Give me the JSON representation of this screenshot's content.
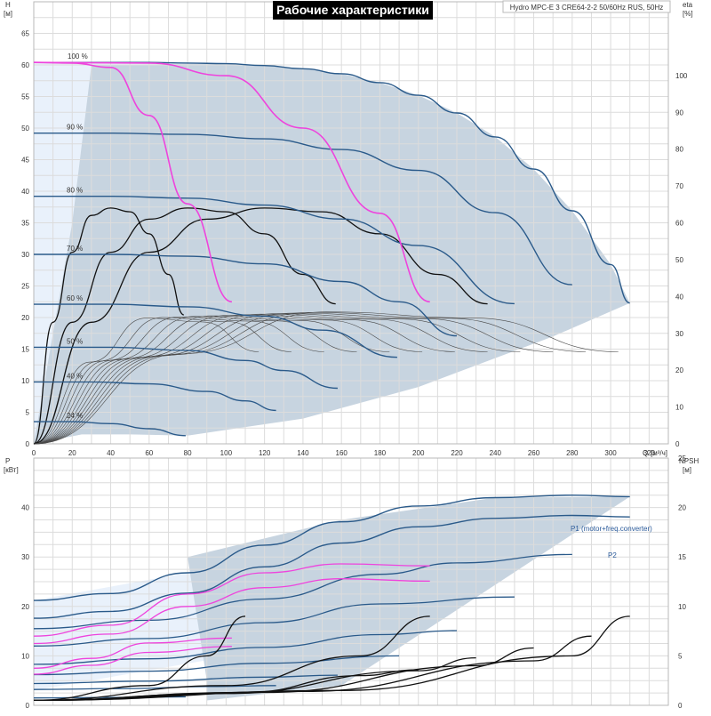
{
  "colors": {
    "curve": "#2a5a8a",
    "thin": "#4a4a4a",
    "black": "#111111",
    "magenta": "#ee44dd",
    "region": "#c7d4e0",
    "light_region": "#e9f1fb",
    "grid": "#dcdcdc"
  },
  "chart_data": [
    {
      "type": "line",
      "title": "Рабочие характеристики",
      "subtitle": "Hydro MPC-E 3 CRE64-2-2 50/60Hz RUS, 50Hz",
      "ylabel": "H",
      "ylabel_unit": "[м]",
      "ylabel_right": "eta",
      "ylabel_right_unit": "[%]",
      "xlabel": "Q",
      "xlabel_unit": "[м³/ч]",
      "xlim": [
        0,
        330
      ],
      "ylim": [
        0,
        70
      ],
      "y2lim": [
        0,
        120
      ],
      "grid": true,
      "xticks": [
        0,
        20,
        40,
        60,
        80,
        100,
        120,
        140,
        160,
        180,
        200,
        220,
        240,
        260,
        280,
        300,
        320
      ],
      "yticks": [
        0,
        5,
        10,
        15,
        20,
        25,
        30,
        35,
        40,
        45,
        50,
        55,
        60,
        65
      ],
      "y2ticks": [
        0,
        10,
        20,
        30,
        40,
        50,
        60,
        70,
        80,
        90,
        100
      ],
      "speed_labels": [
        "100 %",
        "90 %",
        "80 %",
        "70 %",
        "60 %",
        "50 %",
        "40 %",
        "24 %"
      ],
      "head_curves": [
        {
          "speed": 100,
          "x": [
            0,
            20,
            40,
            60,
            80,
            100,
            120,
            140,
            160,
            180,
            200,
            220,
            240,
            260,
            280,
            300,
            310
          ],
          "y": [
            60.4,
            60.4,
            60.4,
            60.4,
            60.3,
            60.2,
            59.9,
            59.4,
            58.6,
            57.2,
            55.2,
            52.4,
            48.6,
            43.5,
            36.9,
            28.4,
            22.3
          ]
        },
        {
          "speed": 90,
          "x": [
            0,
            40,
            80,
            120,
            160,
            200,
            240,
            280
          ],
          "y": [
            49.2,
            49.2,
            49.0,
            48.3,
            46.6,
            43.3,
            36.6,
            25.2
          ]
        },
        {
          "speed": 80,
          "x": [
            0,
            40,
            80,
            120,
            160,
            200,
            250
          ],
          "y": [
            39.2,
            39.2,
            38.9,
            37.8,
            35.6,
            31.4,
            22.2
          ]
        },
        {
          "speed": 70,
          "x": [
            0,
            40,
            80,
            120,
            160,
            190,
            220
          ],
          "y": [
            30.0,
            30.0,
            29.7,
            28.5,
            25.7,
            22.5,
            17.1
          ]
        },
        {
          "speed": 60,
          "x": [
            0,
            40,
            80,
            120,
            150,
            189
          ],
          "y": [
            22.1,
            22.1,
            21.7,
            20.2,
            18.0,
            13.7
          ]
        },
        {
          "speed": 50,
          "x": [
            0,
            40,
            80,
            110,
            130,
            158
          ],
          "y": [
            15.3,
            15.3,
            14.8,
            13.2,
            11.6,
            8.8
          ]
        },
        {
          "speed": 40,
          "x": [
            0,
            30,
            60,
            90,
            110,
            126
          ],
          "y": [
            9.8,
            9.8,
            9.5,
            8.3,
            6.8,
            5.3
          ]
        },
        {
          "speed": 24,
          "x": [
            0,
            20,
            40,
            60,
            79
          ],
          "y": [
            3.5,
            3.5,
            3.2,
            2.4,
            1.3
          ]
        }
      ],
      "efficiency_curves": [
        {
          "pumps": 1,
          "x": [
            0,
            10,
            20,
            30,
            40,
            50,
            60,
            70,
            78
          ],
          "y": [
            0,
            33,
            52,
            62,
            64,
            63,
            57,
            46,
            35
          ]
        },
        {
          "pumps": 2,
          "x": [
            0,
            20,
            40,
            60,
            80,
            100,
            120,
            140,
            157
          ],
          "y": [
            0,
            33,
            52,
            61,
            64,
            63,
            57,
            46,
            38
          ]
        },
        {
          "pumps": 3,
          "x": [
            0,
            30,
            60,
            90,
            120,
            150,
            180,
            210,
            236
          ],
          "y": [
            0,
            33,
            52,
            61,
            64,
            63,
            57,
            46,
            38
          ]
        }
      ],
      "pump_combo_curves": [
        {
          "name": "1",
          "x": [
            0,
            20,
            40,
            60,
            80,
            103
          ],
          "y": [
            60.4,
            60.3,
            59.6,
            52.0,
            38.0,
            22.5
          ]
        },
        {
          "name": "2",
          "x": [
            0,
            60,
            100,
            140,
            180,
            206
          ],
          "y": [
            60.4,
            60.3,
            58.3,
            50.0,
            36.5,
            22.5
          ]
        }
      ]
    },
    {
      "type": "line",
      "ylabel": "P",
      "ylabel_unit": "[кВт]",
      "ylabel_right": "NPSH",
      "ylabel_right_unit": "[м]",
      "xlim": [
        0,
        330
      ],
      "ylim": [
        0,
        50
      ],
      "y2lim": [
        0,
        25
      ],
      "grid": true,
      "yticks": [
        0,
        10,
        20,
        30,
        40
      ],
      "y2ticks": [
        0,
        5,
        10,
        15,
        20,
        25
      ],
      "series": [
        {
          "name": "P1 (motor+freq.converter)",
          "x": [
            0,
            40,
            80,
            120,
            160,
            200,
            240,
            280,
            310
          ],
          "y": [
            21.2,
            22.6,
            26.8,
            32.4,
            37.1,
            40.3,
            42.0,
            42.5,
            42.2
          ]
        },
        {
          "name": "P2",
          "x": [
            0,
            40,
            80,
            120,
            160,
            200,
            240,
            280,
            310
          ],
          "y": [
            17.6,
            19.0,
            22.7,
            28.0,
            32.8,
            36.1,
            37.8,
            38.4,
            38.1
          ]
        }
      ],
      "power_curves": [
        {
          "x": [
            0,
            60,
            120,
            180,
            220,
            280
          ],
          "y": [
            15.5,
            17.2,
            21.5,
            26.5,
            28.8,
            30.5
          ]
        },
        {
          "x": [
            0,
            60,
            120,
            180,
            250
          ],
          "y": [
            12.0,
            13.5,
            16.7,
            20.5,
            21.9
          ]
        },
        {
          "x": [
            0,
            60,
            120,
            180,
            220
          ],
          "y": [
            8.3,
            9.4,
            11.7,
            14.3,
            15.1
          ]
        },
        {
          "x": [
            0,
            60,
            120,
            190
          ],
          "y": [
            6.2,
            6.9,
            8.5,
            10.0
          ]
        },
        {
          "x": [
            0,
            60,
            120,
            158
          ],
          "y": [
            4.4,
            4.9,
            5.7,
            6.1
          ]
        },
        {
          "x": [
            0,
            50,
            90,
            126
          ],
          "y": [
            3.2,
            3.4,
            3.8,
            4.0
          ]
        },
        {
          "x": [
            0,
            40,
            79
          ],
          "y": [
            1.5,
            1.6,
            1.7
          ]
        }
      ],
      "magenta_curves": [
        {
          "x": [
            0,
            40,
            80,
            120,
            160,
            206
          ],
          "y": [
            14.0,
            16.2,
            22.5,
            26.8,
            28.6,
            28.2
          ]
        },
        {
          "x": [
            0,
            40,
            80,
            120,
            160,
            206
          ],
          "y": [
            12.5,
            14.4,
            20.0,
            23.8,
            25.6,
            25.1
          ]
        },
        {
          "x": [
            0,
            30,
            60,
            103
          ],
          "y": [
            7.5,
            9.5,
            12.6,
            13.6
          ]
        },
        {
          "x": [
            0,
            30,
            60,
            103
          ],
          "y": [
            6.3,
            8.1,
            10.7,
            11.9
          ]
        }
      ],
      "npsh_curves": [
        {
          "x": [
            0,
            60,
            90,
            110
          ],
          "y": [
            0.5,
            2.0,
            5.0,
            9.0
          ]
        },
        {
          "x": [
            0,
            100,
            170,
            206
          ],
          "y": [
            0.5,
            2.0,
            5.0,
            9.0
          ]
        },
        {
          "x": [
            0,
            100,
            200,
            230
          ],
          "y": [
            0.5,
            1.2,
            3.5,
            4.8
          ]
        },
        {
          "x": [
            0,
            120,
            230,
            260
          ],
          "y": [
            0.5,
            1.3,
            4.0,
            5.8
          ]
        },
        {
          "x": [
            0,
            140,
            260,
            290
          ],
          "y": [
            0.5,
            1.4,
            4.5,
            7.0
          ]
        },
        {
          "x": [
            0,
            160,
            280,
            310
          ],
          "y": [
            0.5,
            1.5,
            5.0,
            9.0
          ]
        },
        {
          "x": [
            0,
            110,
            170,
            200
          ],
          "y": [
            0.5,
            1.3,
            3.0,
            3.6
          ]
        }
      ]
    }
  ]
}
